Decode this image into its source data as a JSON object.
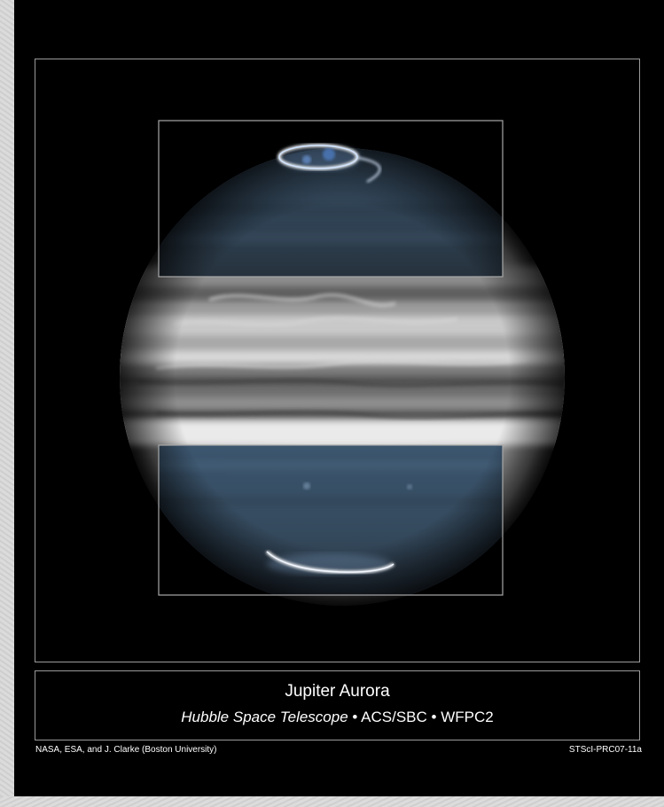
{
  "poster": {
    "title": "Jupiter Aurora",
    "subtitle_telescope": "Hubble Space Telescope",
    "separator": "•",
    "instrument_1": "ACS/SBC",
    "instrument_2": "WFPC2",
    "credit": "NASA, ESA, and J. Clarke (Boston University)",
    "release_id": "STScI-PRC07-11a"
  },
  "colors": {
    "background": "#000000",
    "frame": "#9a9a9a",
    "text": "#ffffff",
    "uv_tint": "#3f5870"
  }
}
